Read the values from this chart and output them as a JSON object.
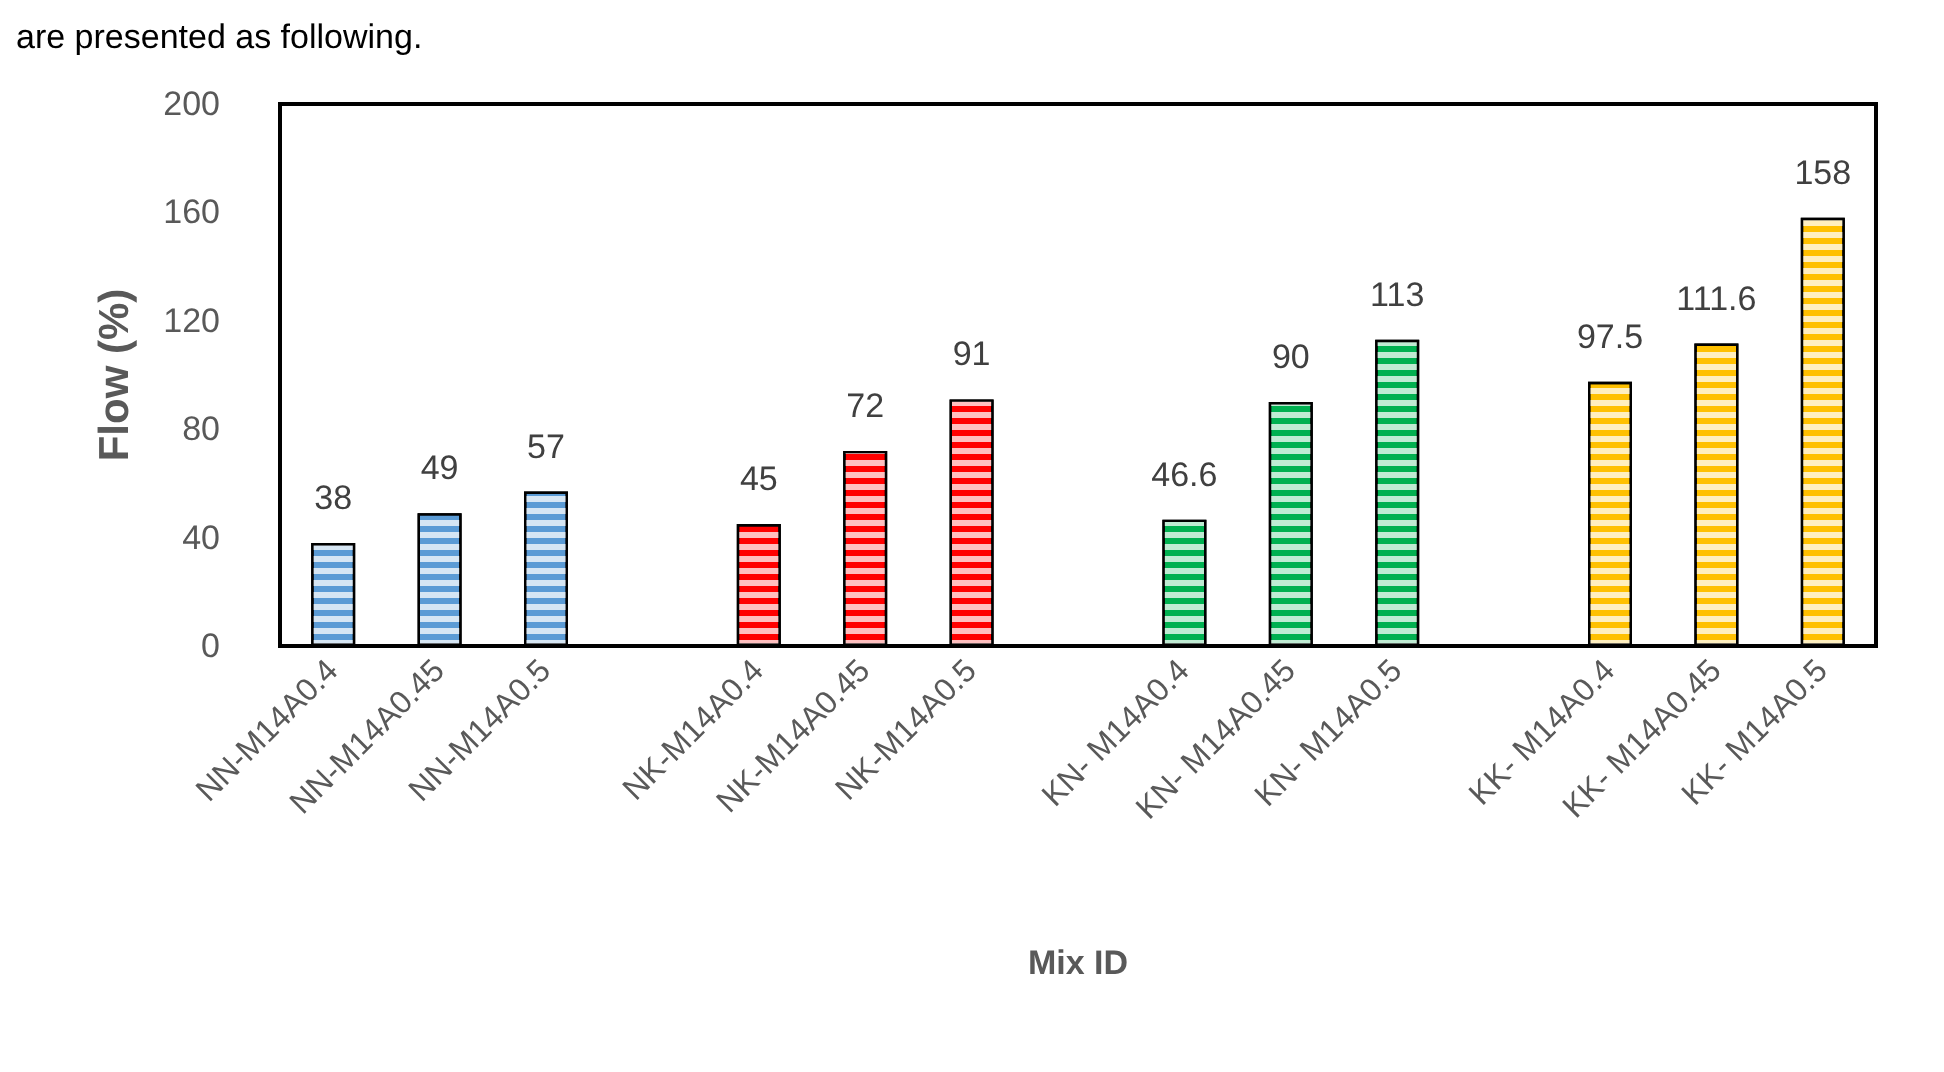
{
  "chart_data": {
    "type": "bar",
    "xlabel": "Mix ID",
    "ylabel": "Flow (%)",
    "categories": [
      "NN-M14A0.4",
      "NN-M14A0.45",
      "NN-M14A0.5",
      null,
      "NK-M14A0.4",
      "NK-M14A0.45",
      "NK-M14A0.5",
      null,
      "KN- M14A0.4",
      "KN- M14A0.45",
      "KN- M14A0.5",
      null,
      "KK- M14A0.4",
      "KK- M14A0.45",
      "KK- M14A0.5"
    ],
    "values": [
      38,
      49,
      57,
      null,
      45,
      72,
      91,
      null,
      46.6,
      90,
      113,
      null,
      97.5,
      111.6,
      158
    ],
    "colors": [
      "#5b9bd5",
      "#5b9bd5",
      "#5b9bd5",
      null,
      "#ff0000",
      "#ff0000",
      "#ff0000",
      null,
      "#00b050",
      "#00b050",
      "#00b050",
      null,
      "#ffc000",
      "#ffc000",
      "#ffc000"
    ],
    "ylim": [
      0,
      200
    ],
    "yticks": [
      0,
      40,
      80,
      120,
      160,
      200
    ],
    "grid": false,
    "data_labels": true,
    "annotations": [
      "are presented as following."
    ]
  }
}
